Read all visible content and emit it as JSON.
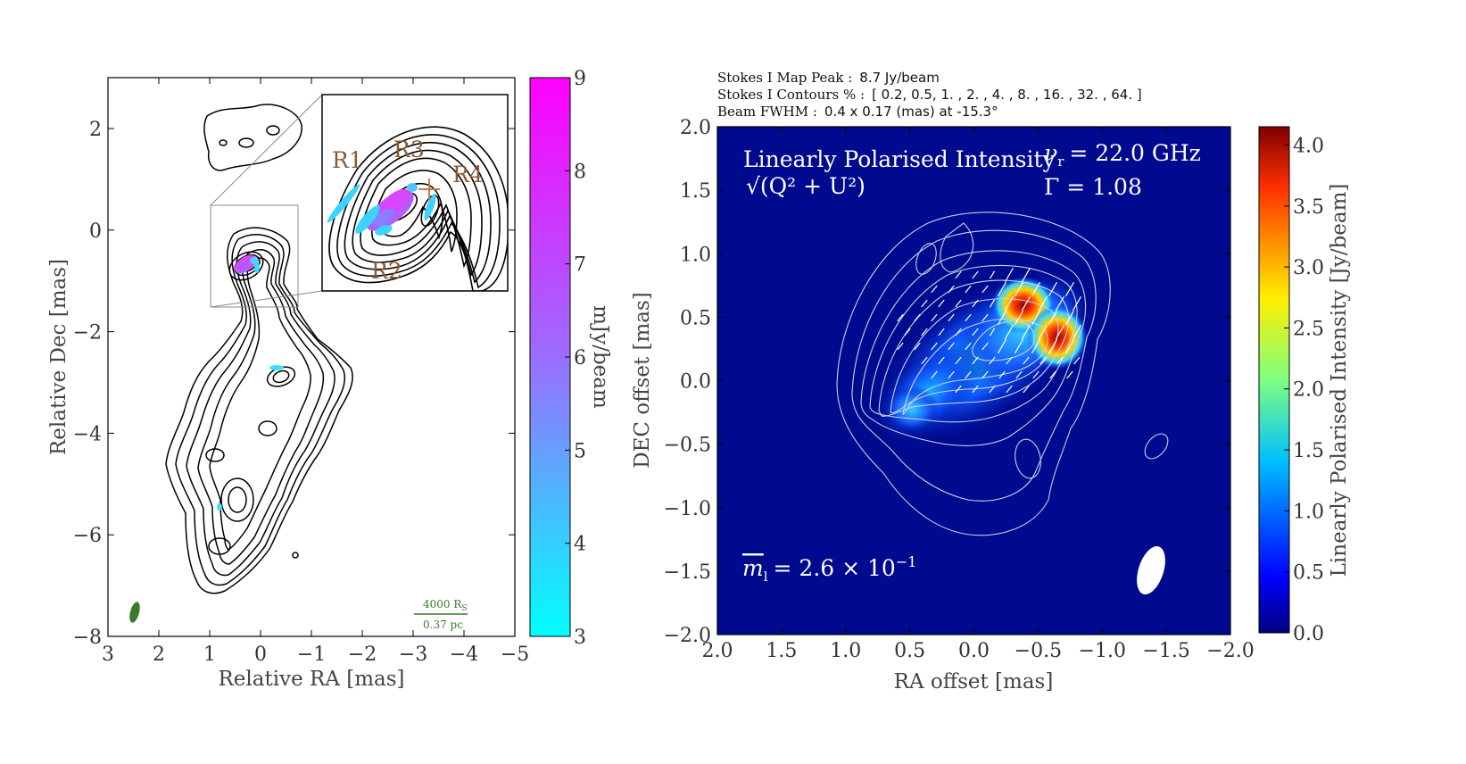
{
  "left_panel": {
    "xlabel": "Relative RA [mas]",
    "ylabel": "Relative Dec [mas]",
    "x_ticks": [
      "3",
      "2",
      "1",
      "0",
      "−1",
      "−2",
      "−3",
      "−4",
      "−5"
    ],
    "y_ticks": [
      "2",
      "0",
      "−2",
      "−4",
      "−6",
      "−8"
    ],
    "colorbar_label": "mJy/beam",
    "colorbar_ticks": [
      "9",
      "8",
      "7",
      "6",
      "5",
      "4",
      "3"
    ],
    "colorbar_colors": [
      "#ff00ff",
      "#00ffff"
    ],
    "region_labels": [
      "R1",
      "R2",
      "R3",
      "R4"
    ],
    "scale_bar_top": "4000 R",
    "scale_bar_top_sub": "S",
    "scale_bar_bottom": "0.37 pc",
    "beam_color": "#3a7a2a"
  },
  "right_panel": {
    "header_lines": [
      {
        "label": "Stokes I Map Peak :",
        "value": "8.7 Jy/beam"
      },
      {
        "label": "Stokes I Contours % :",
        "value": "[ 0.2, 0.5, 1. , 2. , 4. , 8. , 16. , 32. , 64. ]"
      },
      {
        "label": "Beam FWHM :",
        "value": "0.4 x 0.17 (mas) at -15.3°"
      }
    ],
    "title_line1": "Linearly Polarised Intensity",
    "title_line2": "√(Q² + U²)",
    "freq_label": "ν",
    "freq_sub": "r",
    "freq_value": "= 22.0 GHz",
    "gamma_label": "Γ = 1.08",
    "mean_label": "m",
    "mean_sub": "l",
    "mean_value": "=  2.6 × 10",
    "mean_exp": "−1",
    "xlabel": "RA offset [mas]",
    "ylabel": "DEC offset [mas]",
    "x_ticks": [
      "2.0",
      "1.5",
      "1.0",
      "0.5",
      "0.0",
      "−0.5",
      "−1.0",
      "−1.5",
      "−2.0"
    ],
    "y_ticks": [
      "2.0",
      "1.5",
      "1.0",
      "0.5",
      "0.0",
      "−0.5",
      "−1.0",
      "−1.5",
      "−2.0"
    ],
    "colorbar_label": "Linearly Polarised Intensity [Jy/beam]",
    "colorbar_ticks": [
      "4.0",
      "3.5",
      "3.0",
      "2.5",
      "2.0",
      "1.5",
      "1.0",
      "0.5",
      "0.0"
    ],
    "background_color": "#000a8f"
  },
  "chart_data": [
    {
      "type": "heatmap",
      "xlabel": "Relative RA [mas]",
      "ylabel": "Relative Dec [mas]",
      "xlim": [
        3,
        -5
      ],
      "ylim": [
        -8,
        3
      ],
      "colorbar": {
        "label": "mJy/beam",
        "range": [
          3,
          9
        ]
      },
      "annotations": [
        "R1",
        "R2",
        "R3",
        "R4",
        "4000 RS",
        "0.37 pc"
      ]
    },
    {
      "type": "heatmap",
      "xlabel": "RA offset [mas]",
      "ylabel": "DEC offset [mas]",
      "xlim": [
        2.0,
        -2.0
      ],
      "ylim": [
        -2.0,
        2.0
      ],
      "colorbar": {
        "label": "Linearly Polarised Intensity [Jy/beam]",
        "range": [
          0.0,
          4.1
        ]
      },
      "stokes_i_peak": "8.7 Jy/beam",
      "stokes_i_contours_percent": [
        0.2,
        0.5,
        1,
        2,
        4,
        8,
        16,
        32,
        64
      ],
      "beam_fwhm": "0.4 x 0.17 (mas) at -15.3°",
      "frequency_ghz": 22.0,
      "gamma": 1.08,
      "mean_fractional_polarisation": 0.26,
      "peaks": [
        {
          "ra": -0.38,
          "dec": 0.55,
          "value": 4.1
        },
        {
          "ra": -0.65,
          "dec": 0.3,
          "value": 3.8
        },
        {
          "ra": 0.62,
          "dec": -0.3,
          "value": 1.4
        }
      ]
    }
  ]
}
